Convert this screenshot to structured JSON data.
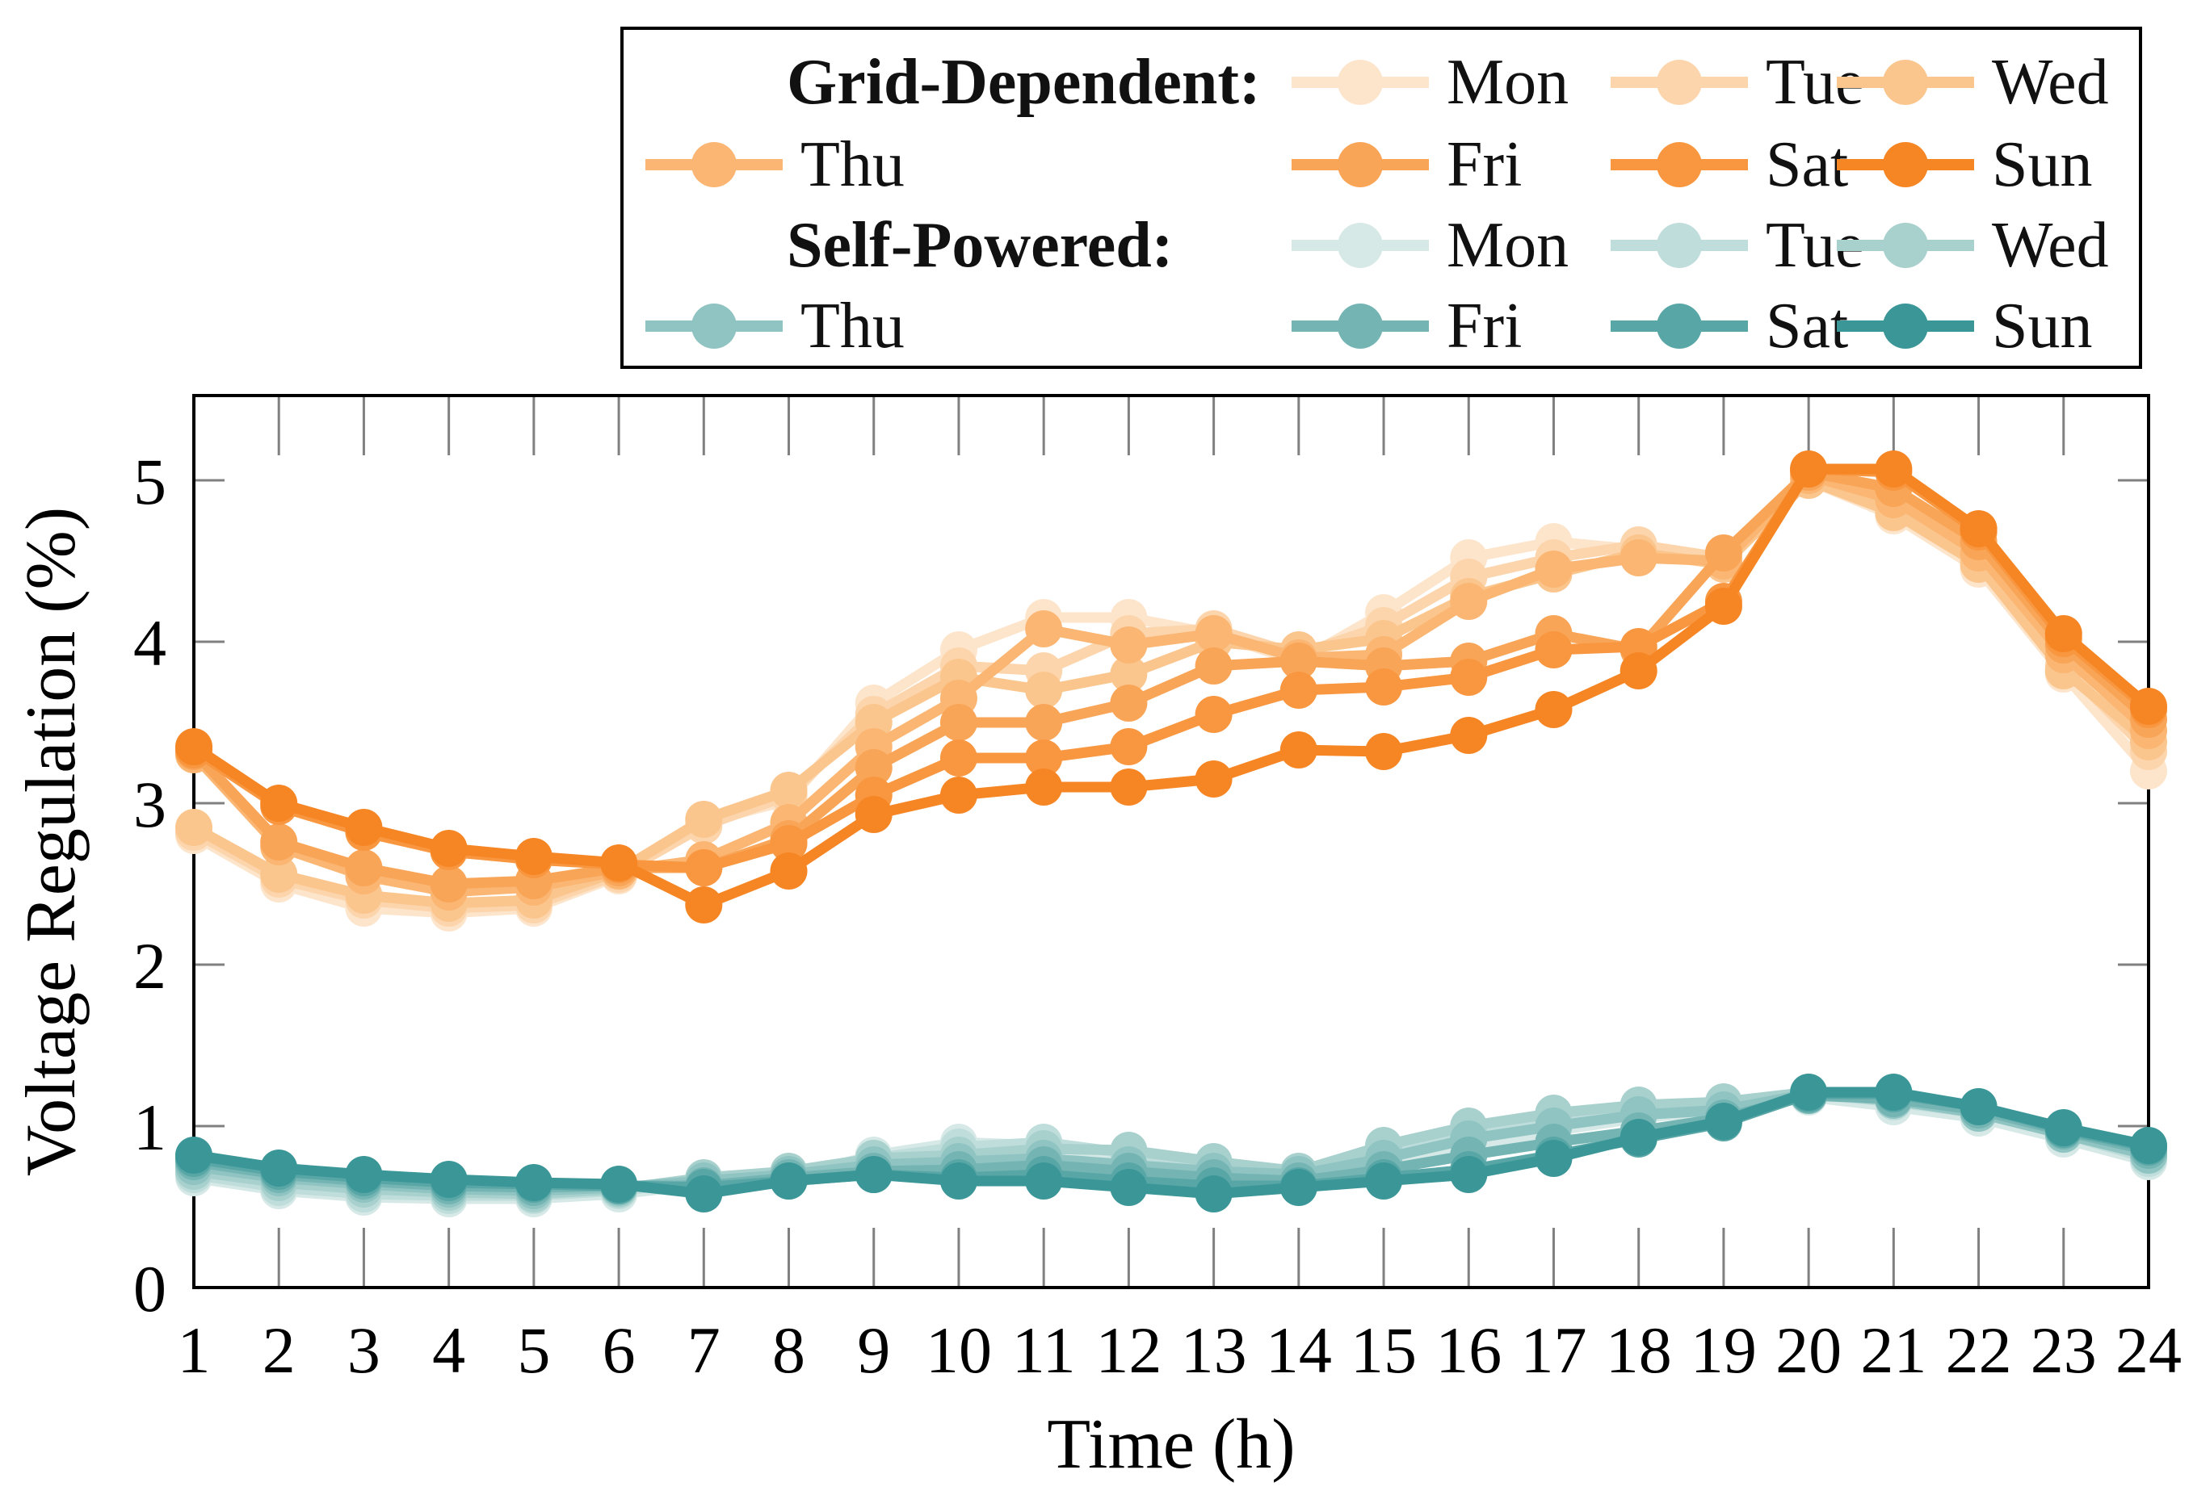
{
  "chart_data": {
    "type": "line",
    "title": "",
    "xlabel": "Time (h)",
    "ylabel": "Voltage Regulation (%)",
    "x": [
      1,
      2,
      3,
      4,
      5,
      6,
      7,
      8,
      9,
      10,
      11,
      12,
      13,
      14,
      15,
      16,
      17,
      18,
      19,
      20,
      21,
      22,
      23,
      24
    ],
    "xticks": [
      1,
      2,
      3,
      4,
      5,
      6,
      7,
      8,
      9,
      10,
      11,
      12,
      13,
      14,
      15,
      16,
      17,
      18,
      19,
      20,
      21,
      22,
      23,
      24
    ],
    "yticks": [
      0,
      1,
      2,
      3,
      4,
      5
    ],
    "xlim": [
      1,
      24
    ],
    "ylim": [
      0,
      5.52
    ],
    "grid": false,
    "legend_position": "top",
    "frame_color": "#000000",
    "tick_color": "#808080",
    "groups": [
      {
        "name": "Grid-Dependent:",
        "series": [
          {
            "name": "Mon",
            "color": "#FDE5CC",
            "values": [
              2.8,
              2.5,
              2.35,
              2.32,
              2.35,
              2.55,
              2.88,
              3.02,
              3.62,
              3.95,
              4.15,
              4.15,
              4.05,
              3.88,
              4.18,
              4.52,
              4.62,
              4.57,
              4.5,
              5.0,
              4.78,
              4.45,
              3.8,
              3.2
            ]
          },
          {
            "name": "Tue",
            "color": "#FCD5AC",
            "values": [
              2.82,
              2.53,
              2.4,
              2.35,
              2.37,
              2.56,
              2.86,
              3.05,
              3.55,
              3.85,
              3.82,
              4.05,
              4.08,
              3.92,
              4.1,
              4.4,
              4.52,
              4.6,
              4.52,
              5.02,
              4.82,
              4.5,
              3.85,
              3.32
            ]
          },
          {
            "name": "Wed",
            "color": "#FBC68E",
            "values": [
              2.85,
              2.56,
              2.43,
              2.38,
              2.4,
              2.58,
              2.9,
              3.08,
              3.5,
              3.78,
              3.7,
              3.8,
              4.0,
              3.95,
              4.02,
              4.28,
              4.42,
              4.55,
              4.48,
              5.0,
              4.8,
              4.48,
              3.82,
              3.38
            ]
          },
          {
            "name": "Thu",
            "color": "#FAB672",
            "values": [
              3.3,
              2.73,
              2.55,
              2.45,
              2.48,
              2.58,
              2.65,
              2.88,
              3.35,
              3.65,
              4.08,
              3.98,
              4.05,
              3.9,
              3.92,
              4.25,
              4.45,
              4.52,
              4.5,
              5.03,
              4.88,
              4.55,
              3.92,
              3.45
            ]
          },
          {
            "name": "Fri",
            "color": "#F9A558",
            "values": [
              3.32,
              2.76,
              2.6,
              2.5,
              2.52,
              2.6,
              2.6,
              2.78,
              3.22,
              3.5,
              3.5,
              3.62,
              3.85,
              3.88,
              3.85,
              3.88,
              4.05,
              3.95,
              4.55,
              5.05,
              4.95,
              4.62,
              3.98,
              3.52
            ]
          },
          {
            "name": "Sat",
            "color": "#F89740",
            "values": [
              3.33,
              2.98,
              2.82,
              2.7,
              2.65,
              2.62,
              2.6,
              2.75,
              3.05,
              3.28,
              3.28,
              3.35,
              3.55,
              3.7,
              3.72,
              3.78,
              3.95,
              3.97,
              4.25,
              5.07,
              5.05,
              4.68,
              4.02,
              3.58
            ]
          },
          {
            "name": "Sun",
            "color": "#F68524",
            "values": [
              3.35,
              3.0,
              2.85,
              2.72,
              2.67,
              2.63,
              2.37,
              2.58,
              2.93,
              3.05,
              3.1,
              3.1,
              3.15,
              3.33,
              3.32,
              3.42,
              3.58,
              3.82,
              4.22,
              5.07,
              5.07,
              4.7,
              4.05,
              3.6
            ]
          }
        ]
      },
      {
        "name": "Self-Powered:",
        "series": [
          {
            "name": "Mon",
            "color": "#D6E9E7",
            "values": [
              0.68,
              0.6,
              0.56,
              0.55,
              0.55,
              0.58,
              0.64,
              0.68,
              0.82,
              0.9,
              0.88,
              0.8,
              0.72,
              0.65,
              0.75,
              0.88,
              0.97,
              1.05,
              1.1,
              1.18,
              1.12,
              1.05,
              0.92,
              0.78
            ]
          },
          {
            "name": "Tue",
            "color": "#BFDDDB",
            "values": [
              0.7,
              0.62,
              0.58,
              0.57,
              0.57,
              0.6,
              0.66,
              0.7,
              0.8,
              0.87,
              0.9,
              0.83,
              0.75,
              0.68,
              0.82,
              0.95,
              1.02,
              1.1,
              1.13,
              1.2,
              1.15,
              1.08,
              0.95,
              0.8
            ]
          },
          {
            "name": "Wed",
            "color": "#A8D1CE",
            "values": [
              0.72,
              0.65,
              0.61,
              0.59,
              0.58,
              0.61,
              0.68,
              0.72,
              0.8,
              0.82,
              0.86,
              0.85,
              0.78,
              0.72,
              0.88,
              1.0,
              1.08,
              1.13,
              1.15,
              1.21,
              1.17,
              1.1,
              0.97,
              0.82
            ]
          },
          {
            "name": "Thu",
            "color": "#8FC4C2",
            "values": [
              0.75,
              0.68,
              0.64,
              0.61,
              0.6,
              0.62,
              0.66,
              0.7,
              0.76,
              0.78,
              0.8,
              0.76,
              0.72,
              0.7,
              0.8,
              0.92,
              1.0,
              1.07,
              1.1,
              1.2,
              1.16,
              1.08,
              0.95,
              0.82
            ]
          },
          {
            "name": "Fri",
            "color": "#74B5B4",
            "values": [
              0.78,
              0.7,
              0.66,
              0.63,
              0.62,
              0.63,
              0.63,
              0.68,
              0.72,
              0.73,
              0.76,
              0.72,
              0.68,
              0.66,
              0.73,
              0.82,
              0.9,
              0.97,
              1.05,
              1.19,
              1.17,
              1.1,
              0.97,
              0.85
            ]
          },
          {
            "name": "Sat",
            "color": "#58A6A6",
            "values": [
              0.8,
              0.72,
              0.68,
              0.65,
              0.64,
              0.63,
              0.62,
              0.66,
              0.7,
              0.68,
              0.7,
              0.66,
              0.63,
              0.63,
              0.68,
              0.73,
              0.82,
              0.92,
              1.02,
              1.2,
              1.2,
              1.12,
              0.98,
              0.87
            ]
          },
          {
            "name": "Sun",
            "color": "#3B9697",
            "values": [
              0.82,
              0.74,
              0.7,
              0.67,
              0.65,
              0.64,
              0.58,
              0.66,
              0.7,
              0.66,
              0.66,
              0.62,
              0.58,
              0.62,
              0.66,
              0.7,
              0.8,
              0.93,
              1.03,
              1.21,
              1.21,
              1.12,
              0.99,
              0.88
            ]
          }
        ]
      }
    ]
  }
}
